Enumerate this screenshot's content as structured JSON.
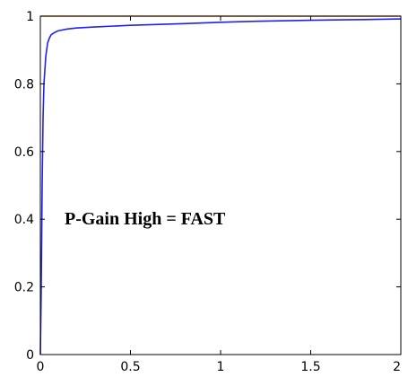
{
  "chart_data": {
    "type": "line",
    "title": "",
    "xlabel": "",
    "ylabel": "",
    "xlim": [
      0,
      2
    ],
    "ylim": [
      0,
      1
    ],
    "xticks": [
      0,
      0.5,
      1,
      1.5,
      2
    ],
    "xtick_labels": [
      "0",
      "0.5",
      "1",
      "1.5",
      "2"
    ],
    "yticks": [
      0,
      0.2,
      0.4,
      0.6,
      0.8,
      1
    ],
    "ytick_labels": [
      "0",
      "0.2",
      "0.4",
      "0.6",
      "0.8",
      "1"
    ],
    "grid": false,
    "legend": false,
    "annotation": "P-Gain High = FAST",
    "series": [
      {
        "color": "#2222ee",
        "x": [
          0,
          0.005,
          0.01,
          0.015,
          0.02,
          0.03,
          0.04,
          0.05,
          0.06,
          0.08,
          0.1,
          0.15,
          0.2,
          0.3,
          0.5,
          0.8,
          1.0,
          1.2,
          1.5,
          1.8,
          2.0
        ],
        "y": [
          0,
          0.2,
          0.5,
          0.7,
          0.8,
          0.88,
          0.92,
          0.935,
          0.945,
          0.952,
          0.957,
          0.962,
          0.965,
          0.968,
          0.973,
          0.978,
          0.982,
          0.985,
          0.988,
          0.99,
          0.992
        ]
      },
      {
        "color": "#e07020",
        "x": [
          0,
          1.5,
          2.0
        ],
        "y": [
          1,
          1,
          1
        ]
      },
      {
        "color": "#000000",
        "style": "dashed",
        "x": [
          0,
          2
        ],
        "y": [
          1,
          1
        ]
      }
    ]
  }
}
